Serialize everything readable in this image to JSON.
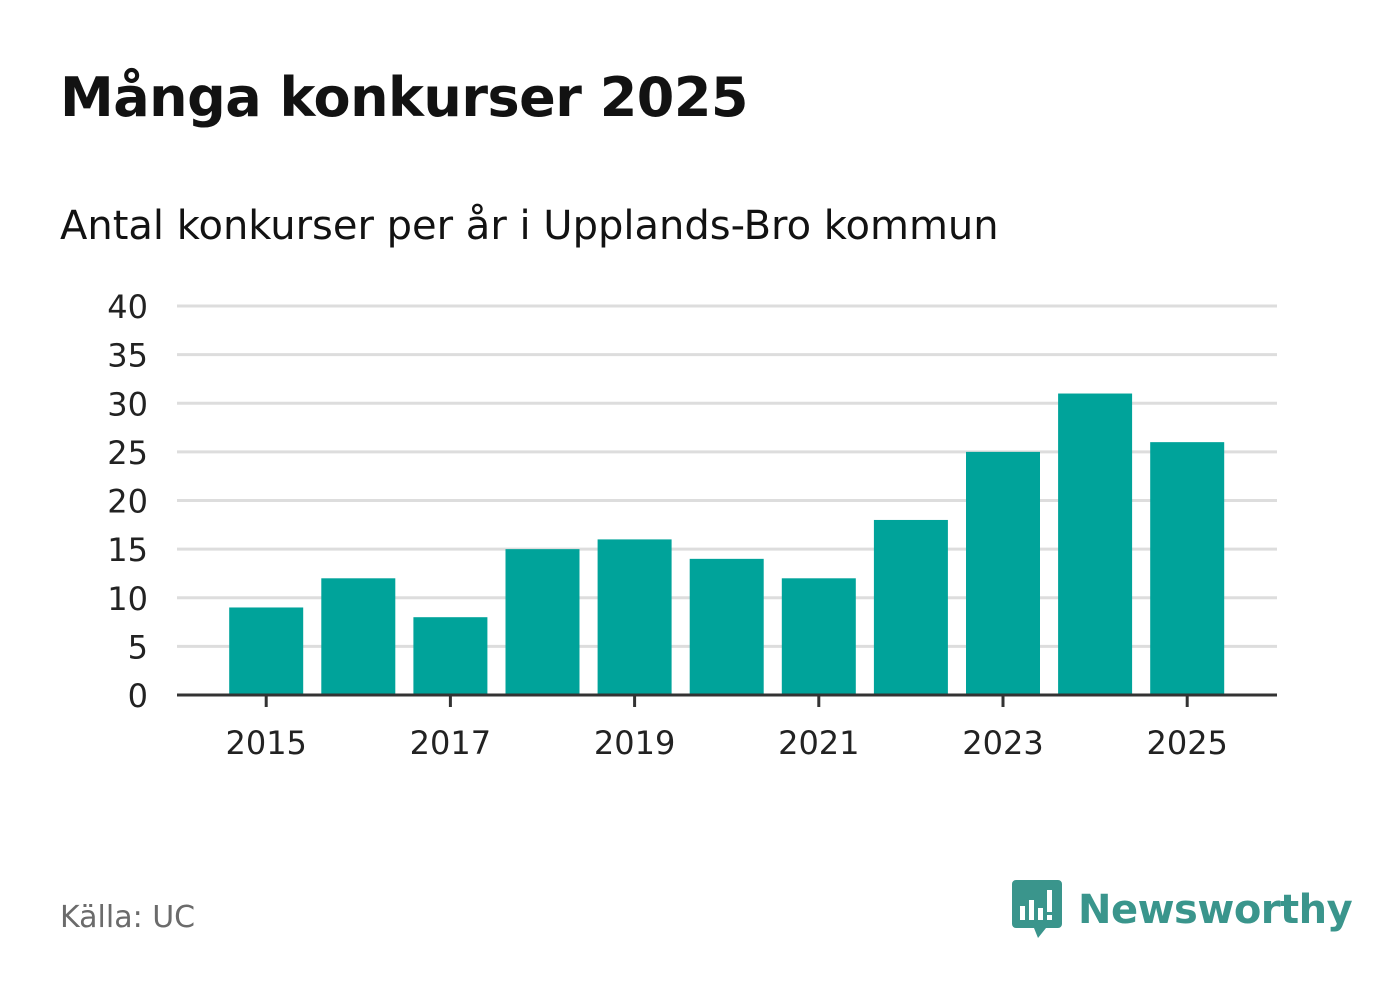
{
  "header": {
    "title": "Många konkurser 2025",
    "subtitle": "Antal konkurser per år i Upplands-Bro kommun"
  },
  "footer": {
    "source": "Källa: UC",
    "brand_name": "Newsworthy",
    "brand_icon": "newsworthy-logo-icon"
  },
  "colors": {
    "bar": "#00a39a",
    "grid": "#dddddd",
    "axis": "#333333",
    "brand": "#3a958c"
  },
  "chart_data": {
    "type": "bar",
    "title": "Många konkurser 2025",
    "subtitle": "Antal konkurser per år i Upplands-Bro kommun",
    "xlabel": "",
    "ylabel": "",
    "categories": [
      "2015",
      "2016",
      "2017",
      "2018",
      "2019",
      "2020",
      "2021",
      "2022",
      "2023",
      "2024",
      "2025"
    ],
    "values": [
      9,
      12,
      8,
      15,
      16,
      14,
      12,
      18,
      25,
      31,
      26
    ],
    "x_tick_labels": [
      "2015",
      "2017",
      "2019",
      "2021",
      "2023",
      "2025"
    ],
    "y_ticks": [
      0,
      5,
      10,
      15,
      20,
      25,
      30,
      35,
      40
    ],
    "ylim": [
      0,
      40
    ],
    "grid": true,
    "legend": "none"
  }
}
